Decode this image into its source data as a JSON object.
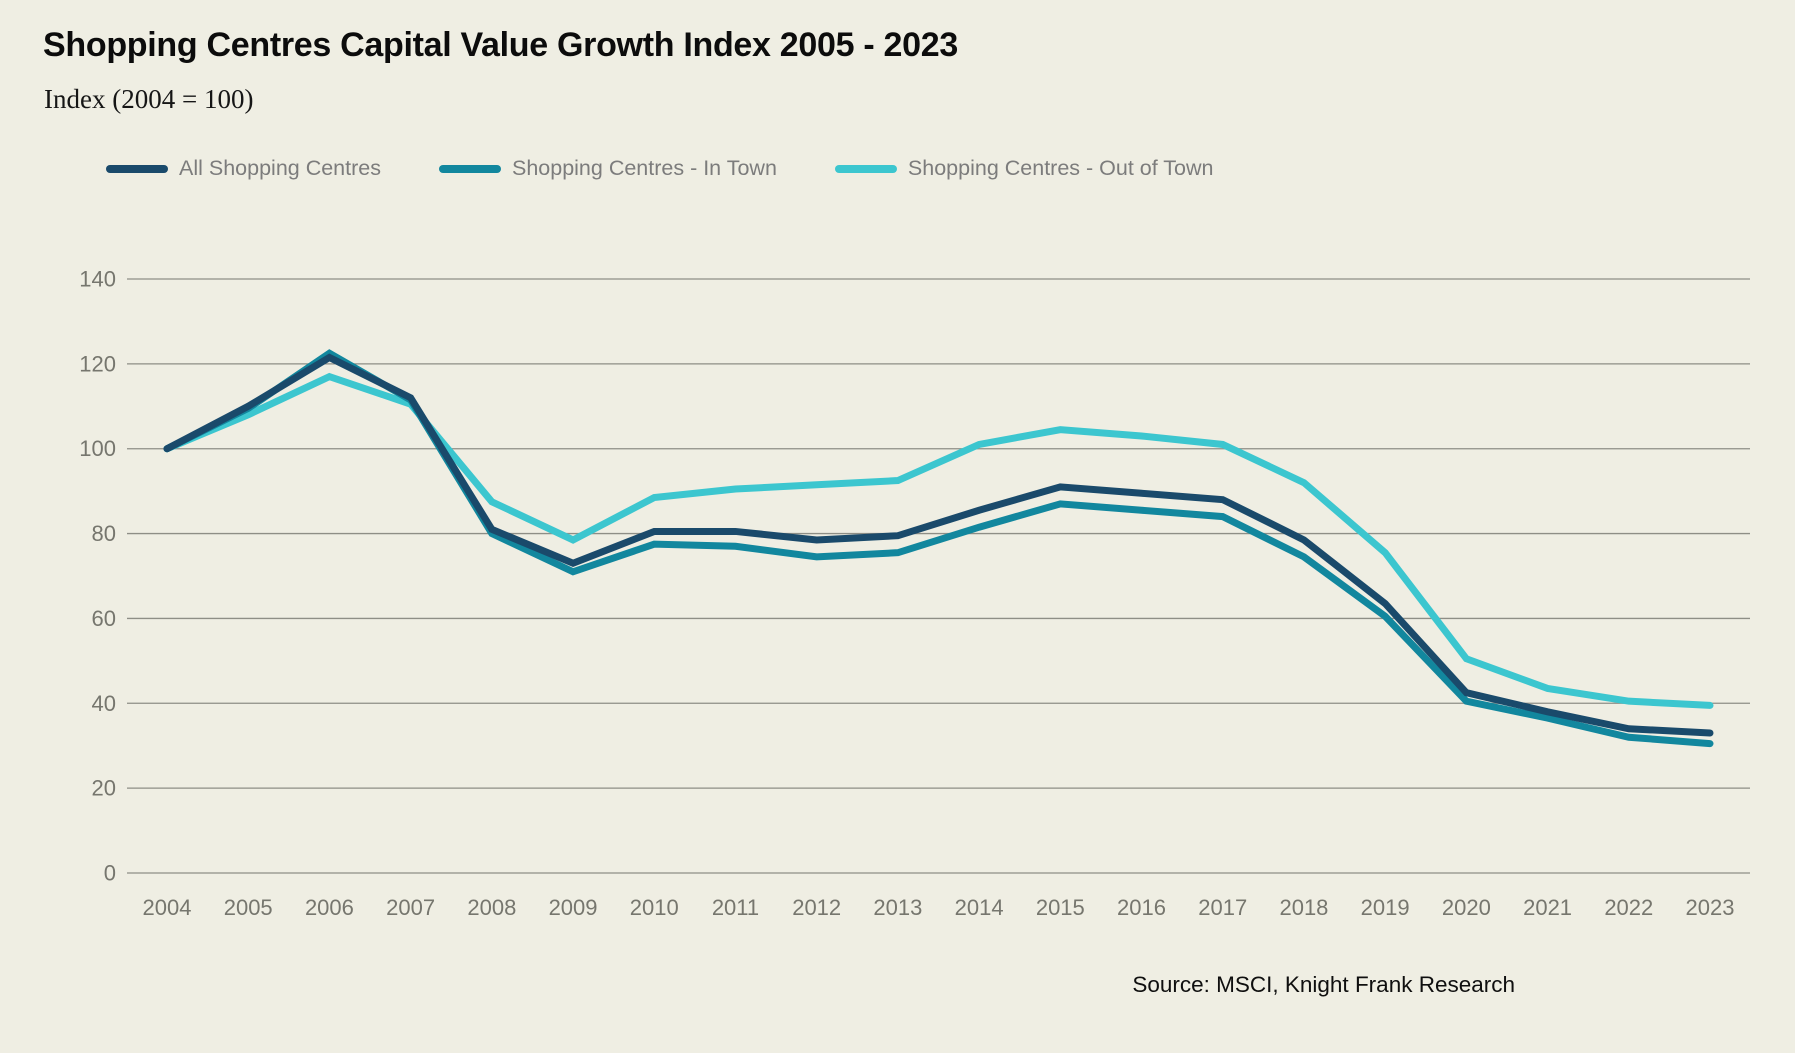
{
  "header": {
    "title": "Shopping Centres Capital Value Growth Index 2005 - 2023",
    "subtitle": "Index (2004 = 100)"
  },
  "source": "Source: MSCI, Knight Frank Research",
  "colors": {
    "background": "#efeee3",
    "gridline": "#8e8e86",
    "axis_text": "#76766e",
    "legend_text": "#7c7c7c",
    "all_shopping_centres": "#1a4a6b",
    "in_town": "#12879e",
    "out_of_town": "#3cc6cf"
  },
  "chart_data": {
    "type": "line",
    "x": [
      2004,
      2005,
      2006,
      2007,
      2008,
      2009,
      2010,
      2011,
      2012,
      2013,
      2014,
      2015,
      2016,
      2017,
      2018,
      2019,
      2020,
      2021,
      2022,
      2023
    ],
    "series": [
      {
        "name": "All Shopping Centres",
        "color_key": "all_shopping_centres",
        "values": [
          100,
          110,
          121.5,
          112,
          81,
          73,
          80.5,
          80.5,
          78.5,
          79.5,
          85.5,
          91,
          89.5,
          88,
          78.5,
          63.5,
          42.5,
          38,
          34,
          33
        ]
      },
      {
        "name": "Shopping Centres - In Town",
        "color_key": "in_town",
        "values": [
          100,
          109.5,
          122.5,
          111.5,
          80,
          71,
          77.5,
          77,
          74.5,
          75.5,
          81.5,
          87,
          85.5,
          84,
          74.5,
          60.5,
          40.5,
          36.5,
          32,
          30.5
        ]
      },
      {
        "name": "Shopping Centres - Out of Town",
        "color_key": "out_of_town",
        "values": [
          100,
          108,
          117,
          110.5,
          87.5,
          78.5,
          88.5,
          90.5,
          91.5,
          92.5,
          101,
          104.5,
          103,
          101,
          92,
          75.5,
          50.5,
          43.5,
          40.5,
          39.5
        ]
      }
    ],
    "ylim": [
      0,
      140
    ],
    "yticks": [
      0,
      20,
      40,
      60,
      80,
      100,
      120,
      140
    ],
    "grid": "horizontal",
    "legend_position": "top",
    "xlabel": "",
    "ylabel": ""
  }
}
